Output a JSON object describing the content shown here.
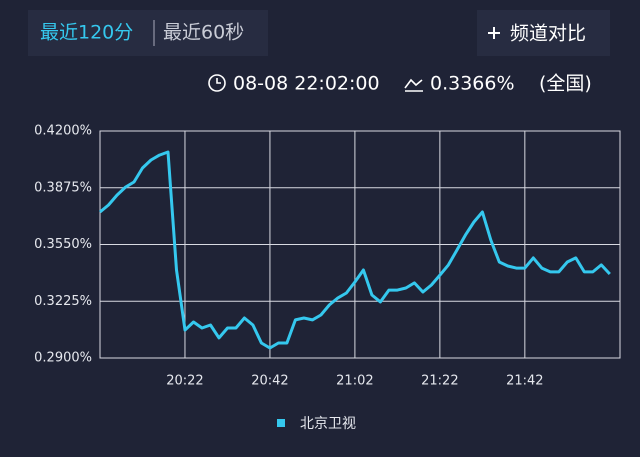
{
  "tabs": [
    "最近120分",
    "最近60秒"
  ],
  "compare_button": "频道对比",
  "info": {
    "time": "08-08 22:02:00",
    "rating": "0.3366%",
    "scope": "(全国)"
  },
  "chart_data": {
    "type": "line",
    "categories": [
      null,
      null,
      null,
      null,
      null,
      null,
      null,
      null,
      null,
      null,
      "20:22",
      null,
      null,
      null,
      null,
      null,
      null,
      null,
      null,
      null,
      "20:42",
      null,
      null,
      null,
      null,
      null,
      null,
      null,
      null,
      null,
      "21:02",
      null,
      null,
      null,
      null,
      null,
      null,
      null,
      null,
      null,
      "21:22",
      null,
      null,
      null,
      null,
      null,
      null,
      null,
      null,
      null,
      "21:42",
      null,
      null,
      null,
      null,
      null,
      null,
      null,
      null,
      null,
      null
    ],
    "series": [
      {
        "name": "北京卫视",
        "color": "#35c8ee",
        "values": [
          0.3736,
          0.3776,
          0.3833,
          0.3879,
          0.3908,
          0.3988,
          0.4034,
          0.4062,
          0.408,
          0.3404,
          0.306,
          0.3106,
          0.3072,
          0.3089,
          0.3015,
          0.3072,
          0.3072,
          0.3129,
          0.3089,
          0.2986,
          0.2957,
          0.2986,
          0.2986,
          0.3118,
          0.3129,
          0.3118,
          0.3146,
          0.3204,
          0.3244,
          0.3272,
          0.3335,
          0.3404,
          0.3261,
          0.3221,
          0.3289,
          0.3289,
          0.3301,
          0.333,
          0.3278,
          0.3318,
          0.3375,
          0.3433,
          0.3518,
          0.3604,
          0.3679,
          0.3736,
          0.3576,
          0.345,
          0.3427,
          0.3415,
          0.3415,
          0.3473,
          0.3415,
          0.3393,
          0.3393,
          0.345,
          0.3473,
          0.3393,
          0.3393,
          0.3433,
          0.3381
        ]
      }
    ],
    "ylim": [
      0.29,
      0.42
    ],
    "yticks": [
      {
        "value": 0.29,
        "label": "0.2900%"
      },
      {
        "value": 0.3225,
        "label": "0.3225%"
      },
      {
        "value": 0.355,
        "label": "0.3550%"
      },
      {
        "value": 0.3875,
        "label": "0.3875%"
      },
      {
        "value": 0.42,
        "label": "0.4200%"
      }
    ],
    "grid": true,
    "legend": "bottom"
  }
}
